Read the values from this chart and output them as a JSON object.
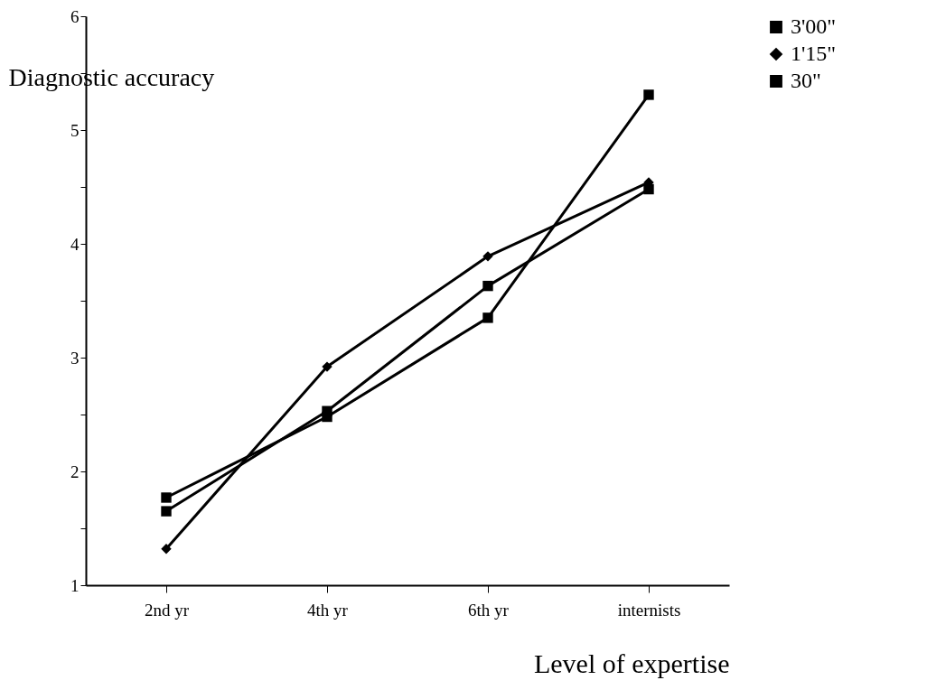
{
  "chart_data": {
    "type": "line",
    "xlabel": "Level of expertise",
    "ylabel": "Diagnostic accuracy",
    "categories": [
      "2nd yr",
      "4th yr",
      "6th yr",
      "internists"
    ],
    "series": [
      {
        "name": "3'00\"",
        "color": "#000000",
        "marker": "square",
        "values": [
          1.77,
          2.48,
          3.35,
          5.31
        ]
      },
      {
        "name": "1'15\"",
        "color": "#000000",
        "marker": "diamond",
        "values": [
          1.32,
          2.92,
          3.89,
          4.54
        ]
      },
      {
        "name": "30\"",
        "color": "#000000",
        "marker": "square",
        "values": [
          1.65,
          2.53,
          3.63,
          4.48
        ]
      }
    ],
    "ylim": [
      1,
      6
    ],
    "yticks": [
      1,
      {
        "value": 1.5,
        "label": null
      },
      2,
      {
        "value": 2.5,
        "label": null
      },
      3,
      {
        "value": 3.5,
        "label": null
      },
      4,
      {
        "value": 4.5,
        "label": null
      },
      5,
      {
        "value": 5.5,
        "label": null
      },
      6
    ],
    "grid": false,
    "legend": "right",
    "marker": "square",
    "line_style": "solid"
  }
}
